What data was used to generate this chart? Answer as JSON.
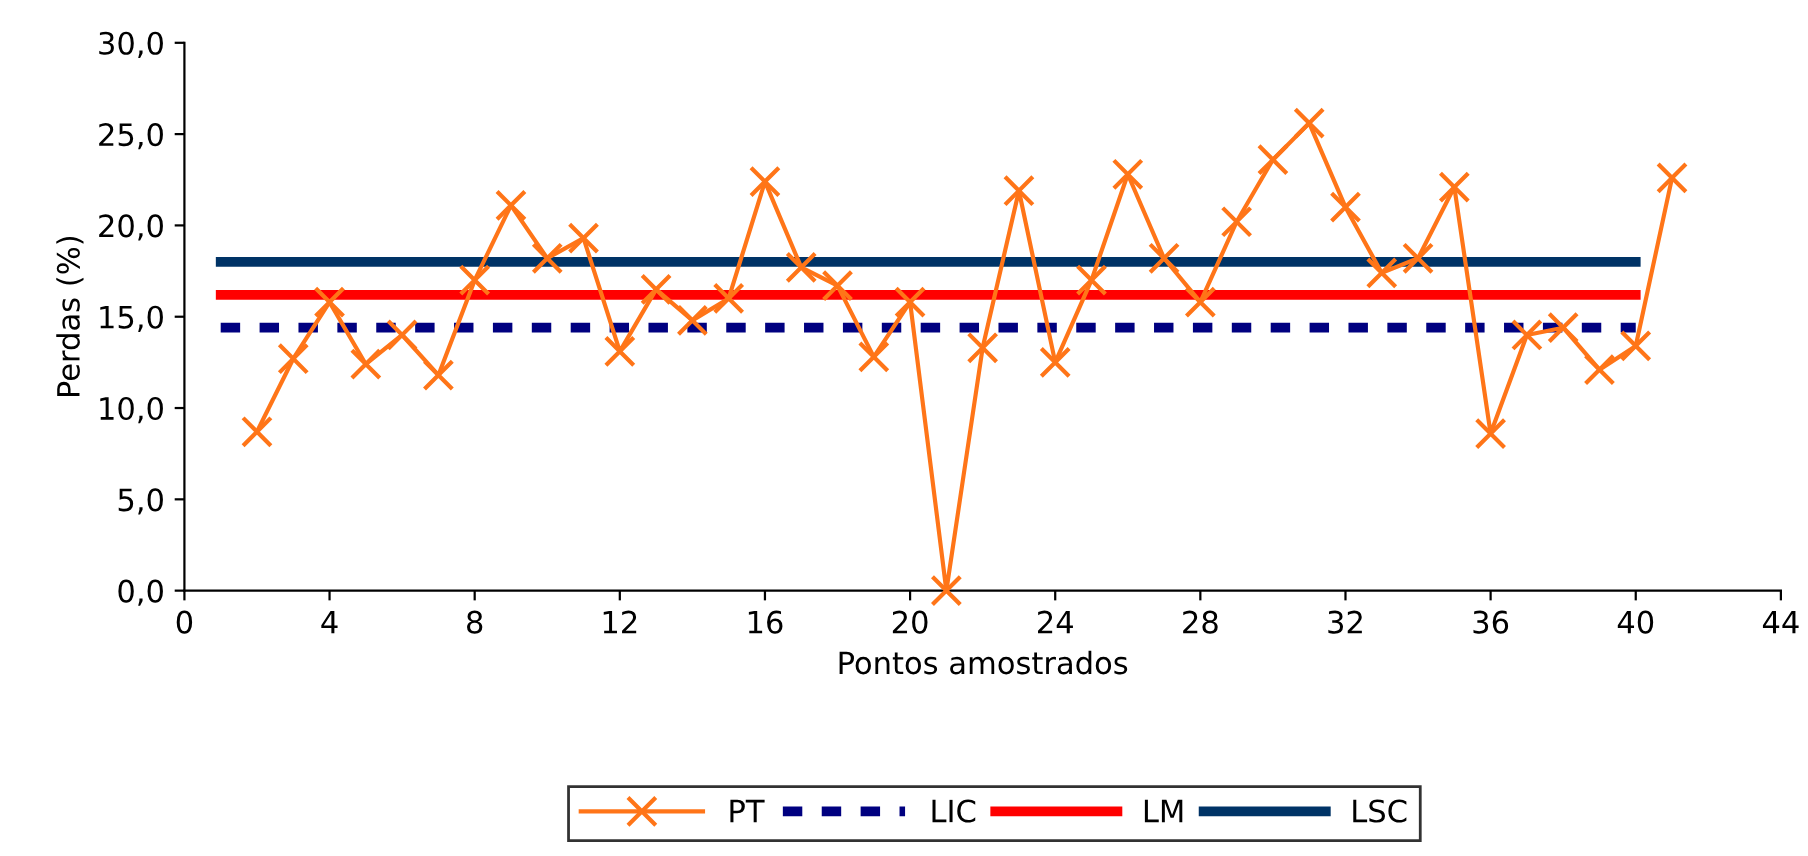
{
  "chart_data": {
    "type": "line",
    "xlabel": "Pontos amostrados",
    "ylabel": "Perdas (%)",
    "xlim": [
      0,
      44
    ],
    "xticks": [
      0,
      4,
      8,
      12,
      16,
      20,
      24,
      28,
      32,
      36,
      40,
      44
    ],
    "ylim": [
      0,
      30
    ],
    "yticks": [
      {
        "value": 0,
        "label": "0,0"
      },
      {
        "value": 5,
        "label": "5,0"
      },
      {
        "value": 10,
        "label": "10,0"
      },
      {
        "value": 15,
        "label": "15,0"
      },
      {
        "value": 20,
        "label": "20,0"
      },
      {
        "value": 25,
        "label": "25,0"
      },
      {
        "value": 30,
        "label": "30,0"
      }
    ],
    "grid": false,
    "legend": "bottom",
    "series": [
      {
        "name": "PT",
        "color": "#ff7518",
        "marker": "cross",
        "line_style": "solid",
        "x": [
          2,
          3,
          4,
          5,
          6,
          7,
          8,
          9,
          10,
          11,
          12,
          13,
          14,
          15,
          16,
          17,
          18,
          19,
          20,
          21,
          22,
          23,
          24,
          25,
          26,
          27,
          28,
          29,
          30,
          31,
          32,
          33,
          34,
          35,
          36,
          37,
          38,
          39,
          40,
          41
        ],
        "values": [
          8.7,
          12.7,
          15.8,
          12.4,
          14.0,
          11.8,
          17.0,
          21.1,
          18.2,
          19.3,
          13.1,
          16.5,
          14.8,
          16.0,
          22.4,
          17.7,
          16.7,
          12.8,
          15.8,
          0.0,
          13.3,
          21.9,
          12.5,
          17.0,
          22.8,
          18.2,
          15.8,
          20.2,
          23.6,
          25.6,
          21.0,
          17.4,
          18.2,
          22.1,
          8.6,
          14.0,
          14.4,
          12.1,
          13.4,
          22.6
        ]
      },
      {
        "name": "LIC",
        "color": "#000080",
        "marker": "none",
        "line_style": "dashed",
        "x": [
          1,
          40
        ],
        "values": [
          14.4,
          14.4
        ]
      },
      {
        "name": "LM",
        "color": "#ff0000",
        "marker": "none",
        "line_style": "solid",
        "x": [
          1,
          40
        ],
        "values": [
          16.2,
          16.2
        ]
      },
      {
        "name": "LSC",
        "color": "#003366",
        "marker": "none",
        "line_style": "solid",
        "x": [
          1,
          40
        ],
        "values": [
          18.0,
          18.0
        ]
      }
    ]
  }
}
